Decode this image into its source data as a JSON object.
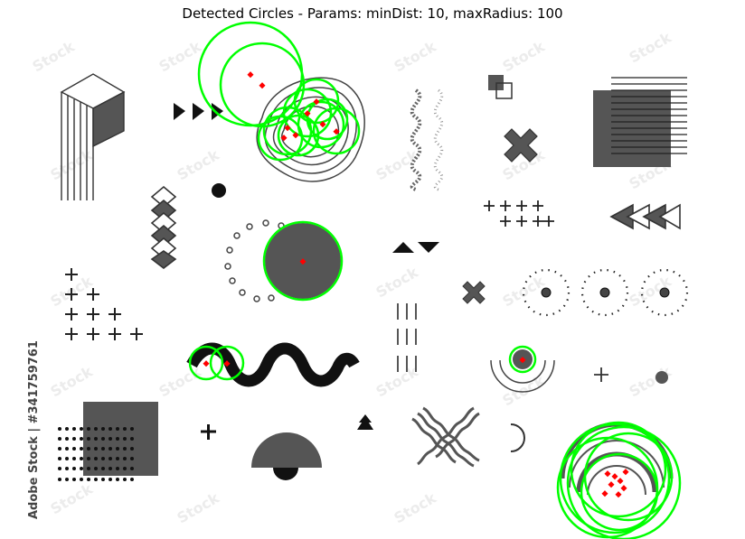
{
  "figure": {
    "title": "Detected Circles - Params: minDist: 10, maxRadius: 100",
    "side_credit": "Adobe Stock | #341759761",
    "detection_color": "#00ff00",
    "center_color": "#ff0000",
    "shape_color": "#555555"
  }
}
